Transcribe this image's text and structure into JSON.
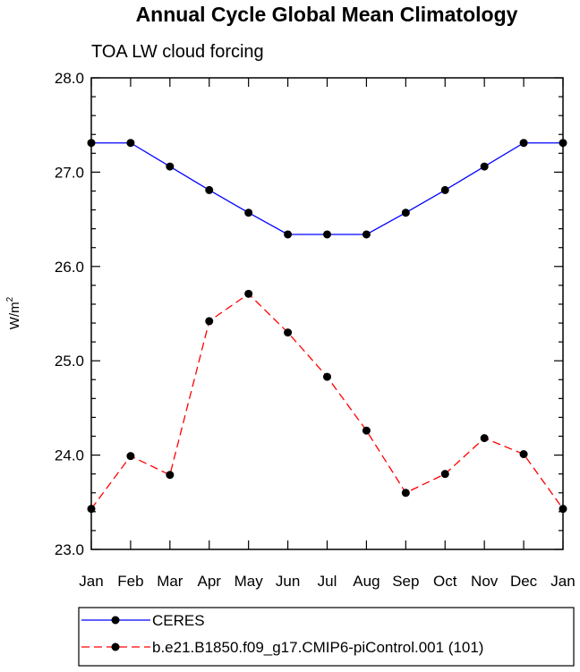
{
  "chart_data": {
    "type": "line",
    "title": "Annual Cycle Global Mean Climatology",
    "subtitle": "TOA LW cloud forcing",
    "ylabel": "W/m",
    "ylabel_superscript": "2",
    "ylim": [
      23.0,
      28.0
    ],
    "yticks": [
      23.0,
      24.0,
      25.0,
      26.0,
      27.0,
      28.0
    ],
    "ytick_labels": [
      "23.0",
      "24.0",
      "25.0",
      "26.0",
      "27.0",
      "28.0"
    ],
    "yminor_step": 0.2,
    "categories": [
      "Jan",
      "Feb",
      "Mar",
      "Apr",
      "May",
      "Jun",
      "Jul",
      "Aug",
      "Sep",
      "Oct",
      "Nov",
      "Dec",
      "Jan"
    ],
    "grid": false,
    "legend_position": "bottom",
    "series": [
      {
        "name": "CERES",
        "color": "#0000ff",
        "style": "solid",
        "marker": "circle",
        "values": [
          27.31,
          27.31,
          27.06,
          26.81,
          26.57,
          26.34,
          26.34,
          26.34,
          26.57,
          26.81,
          27.06,
          27.31,
          27.31
        ]
      },
      {
        "name": "b.e21.B1850.f09_g17.CMIP6-piControl.001 (101)",
        "color": "#ff0000",
        "style": "dashed",
        "marker": "circle",
        "values": [
          23.43,
          23.99,
          23.79,
          25.42,
          25.71,
          25.3,
          24.83,
          24.26,
          23.6,
          23.8,
          24.18,
          24.01,
          23.43
        ]
      }
    ]
  }
}
